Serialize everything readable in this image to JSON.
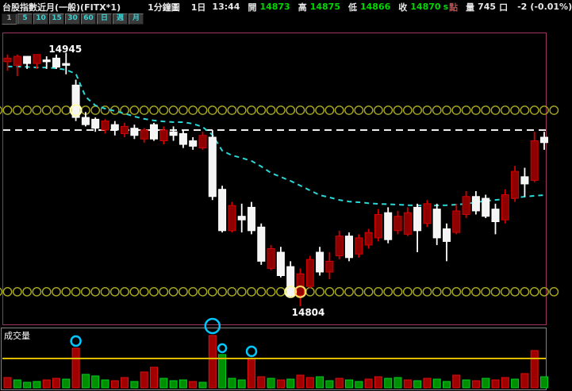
{
  "topbar": {
    "title": "台股指數近月(一般)(FITX*1)",
    "chart_type": "1分鐘圖",
    "session": "1日",
    "time": "13:44",
    "open_label": "開",
    "open": "14873",
    "high_label": "高",
    "high": "14875",
    "low_label": "低",
    "low": "14866",
    "close_label": "收",
    "close": "14870",
    "close_flag": "s",
    "point_label": "點",
    "volume_label": "量",
    "volume": "745",
    "volume_unit": "口",
    "change": "-2",
    "change_pct": "(-0.01%)"
  },
  "toolbar": {
    "buttons": [
      "1",
      "5",
      "10",
      "15",
      "30",
      "60",
      "日",
      "週",
      "月"
    ],
    "active": "1"
  },
  "volume_panel": {
    "label": "成交量"
  },
  "chart_data": {
    "type": "candlestick",
    "instrument": "台股指數近月(一般)(FITX*1)",
    "interval": "1分鐘",
    "high_annotation": {
      "text": "14945",
      "price": 14945,
      "candle_index": 6
    },
    "low_annotation": {
      "text": "14804",
      "price": 14804,
      "candle_index": 30
    },
    "reference_line_price": 14902,
    "upper_band_price": 14913,
    "lower_band_price": 14812,
    "ylim": [
      14790,
      14960
    ],
    "candles": [
      [
        14940,
        14944,
        14935,
        14942
      ],
      [
        14938,
        14944,
        14932,
        14943
      ],
      [
        14943,
        14943,
        14936,
        14939
      ],
      [
        14939,
        14944,
        14936,
        14944
      ],
      [
        14941,
        14943,
        14936,
        14940
      ],
      [
        14942,
        14944,
        14936,
        14937
      ],
      [
        14939,
        14945,
        14933,
        14938
      ],
      [
        14927,
        14930,
        14907,
        14909
      ],
      [
        14909,
        14912,
        14904,
        14905
      ],
      [
        14908,
        14909,
        14901,
        14903
      ],
      [
        14902,
        14908,
        14900,
        14907
      ],
      [
        14905,
        14907,
        14899,
        14902
      ],
      [
        14900,
        14906,
        14898,
        14904
      ],
      [
        14903,
        14905,
        14897,
        14899
      ],
      [
        14897,
        14903,
        14895,
        14902
      ],
      [
        14905,
        14906,
        14896,
        14897
      ],
      [
        14896,
        14904,
        14894,
        14902
      ],
      [
        14901,
        14904,
        14896,
        14899
      ],
      [
        14900,
        14902,
        14892,
        14894
      ],
      [
        14896,
        14898,
        14891,
        14893
      ],
      [
        14892,
        14901,
        14891,
        14899
      ],
      [
        14898,
        14902,
        14863,
        14865
      ],
      [
        14869,
        14871,
        14845,
        14846
      ],
      [
        14846,
        14862,
        14845,
        14860
      ],
      [
        14854,
        14861,
        14845,
        14852
      ],
      [
        14859,
        14862,
        14844,
        14846
      ],
      [
        14848,
        14850,
        14827,
        14829
      ],
      [
        14825,
        14838,
        14824,
        14836
      ],
      [
        14834,
        14837,
        14820,
        14821
      ],
      [
        14826,
        14829,
        14809,
        14810
      ],
      [
        14810,
        14825,
        14804,
        14822
      ],
      [
        14815,
        14832,
        14814,
        14830
      ],
      [
        14834,
        14837,
        14821,
        14823
      ],
      [
        14823,
        14834,
        14819,
        14829
      ],
      [
        14832,
        14846,
        14830,
        14843
      ],
      [
        14843,
        14845,
        14829,
        14831
      ],
      [
        14833,
        14844,
        14831,
        14842
      ],
      [
        14838,
        14847,
        14836,
        14845
      ],
      [
        14842,
        14858,
        14840,
        14855
      ],
      [
        14856,
        14859,
        14839,
        14841
      ],
      [
        14846,
        14857,
        14844,
        14854
      ],
      [
        14844,
        14859,
        14843,
        14856
      ],
      [
        14859,
        14861,
        14834,
        14846
      ],
      [
        14850,
        14863,
        14848,
        14861
      ],
      [
        14858,
        14861,
        14838,
        14842
      ],
      [
        14847,
        14850,
        14829,
        14840
      ],
      [
        14845,
        14861,
        14844,
        14857
      ],
      [
        14855,
        14868,
        14853,
        14865
      ],
      [
        14865,
        14868,
        14855,
        14857
      ],
      [
        14864,
        14866,
        14853,
        14854
      ],
      [
        14858,
        14861,
        14844,
        14851
      ],
      [
        14852,
        14869,
        14850,
        14866
      ],
      [
        14864,
        14882,
        14862,
        14879
      ],
      [
        14876,
        14881,
        14865,
        14872
      ],
      [
        14874,
        14901,
        14873,
        14896
      ],
      [
        14898,
        14901,
        14891,
        14895
      ]
    ],
    "ma_1min": [
      14937.3,
      14937.3,
      14937.1,
      14936.8,
      14936.8,
      14936.4,
      14935.5,
      14933.3,
      14920.5,
      14915.7,
      14913.9,
      14912.6,
      14911.2,
      14909.5,
      14908.2,
      14907.3,
      14906.8,
      14906.4,
      14906.4,
      14905.5,
      14903.7,
      14899.3,
      14890.5,
      14887.9,
      14886.5,
      14884.8,
      14881.7,
      14878.1,
      14875.9,
      14873.7,
      14871.1,
      14868.4,
      14865.8,
      14864.5,
      14863.1,
      14862.2,
      14861.8,
      14861.3,
      14860.9,
      14860.7,
      14860.5,
      14860.2,
      14860.0,
      14860.0,
      14860.0,
      14860.2,
      14860.5,
      14860.9,
      14861.8,
      14862.5,
      14863.1,
      14863.6,
      14864.3,
      14864.9,
      14865.4,
      14865.8
    ],
    "volume_relative": [
      [
        13,
        "r"
      ],
      [
        10,
        "g"
      ],
      [
        7,
        "g"
      ],
      [
        8,
        "g"
      ],
      [
        10,
        "r"
      ],
      [
        12,
        "r"
      ],
      [
        11,
        "g"
      ],
      [
        50,
        "r"
      ],
      [
        17,
        "g"
      ],
      [
        15,
        "g"
      ],
      [
        10,
        "g"
      ],
      [
        9,
        "r"
      ],
      [
        13,
        "r"
      ],
      [
        8,
        "g"
      ],
      [
        20,
        "r"
      ],
      [
        26,
        "r"
      ],
      [
        12,
        "g"
      ],
      [
        9,
        "g"
      ],
      [
        10,
        "g"
      ],
      [
        8,
        "r"
      ],
      [
        7,
        "g"
      ],
      [
        66,
        "r"
      ],
      [
        42,
        "g"
      ],
      [
        12,
        "g"
      ],
      [
        10,
        "g"
      ],
      [
        37,
        "r"
      ],
      [
        14,
        "r"
      ],
      [
        12,
        "g"
      ],
      [
        10,
        "r"
      ],
      [
        11,
        "g"
      ],
      [
        16,
        "r"
      ],
      [
        13,
        "r"
      ],
      [
        14,
        "g"
      ],
      [
        9,
        "g"
      ],
      [
        12,
        "r"
      ],
      [
        10,
        "g"
      ],
      [
        8,
        "g"
      ],
      [
        11,
        "r"
      ],
      [
        14,
        "r"
      ],
      [
        12,
        "g"
      ],
      [
        13,
        "g"
      ],
      [
        10,
        "r"
      ],
      [
        9,
        "g"
      ],
      [
        12,
        "r"
      ],
      [
        11,
        "g"
      ],
      [
        8,
        "g"
      ],
      [
        16,
        "r"
      ],
      [
        10,
        "g"
      ],
      [
        9,
        "r"
      ],
      [
        12,
        "g"
      ],
      [
        10,
        "r"
      ],
      [
        13,
        "r"
      ],
      [
        11,
        "g"
      ],
      [
        18,
        "r"
      ],
      [
        47,
        "r"
      ],
      [
        14,
        "g"
      ]
    ],
    "volume_avg_line": 37,
    "volume_spike_markers": [
      {
        "index": 7,
        "radius": 6
      },
      {
        "index": 21,
        "radius": 9
      },
      {
        "index": 22,
        "radius": 5
      },
      {
        "index": 25,
        "radius": 6
      }
    ],
    "band_highlight_upper": [
      7
    ],
    "band_highlight_lower": [
      29,
      30
    ],
    "colors": {
      "up": "#8f0000",
      "up_edge": "#d40000",
      "down": "#f5f5f5",
      "down_edge": "#ffffff",
      "ma": "#2ad8d8",
      "band": "#a9a923",
      "band_highlight": "#ffffb2",
      "band_highlight_low": "#ffd860",
      "ref_line": "#ededed",
      "vol_up": "#a00000",
      "vol_up_edge": "#dd1111",
      "vol_down": "#008f00",
      "vol_down_edge": "#00cc22",
      "vol_avg": "#ddbb00",
      "spike_marker": "#00c8ff",
      "chart_border": "#9a3560",
      "panel_border": "#828282",
      "accent_green": "#00d800"
    }
  }
}
